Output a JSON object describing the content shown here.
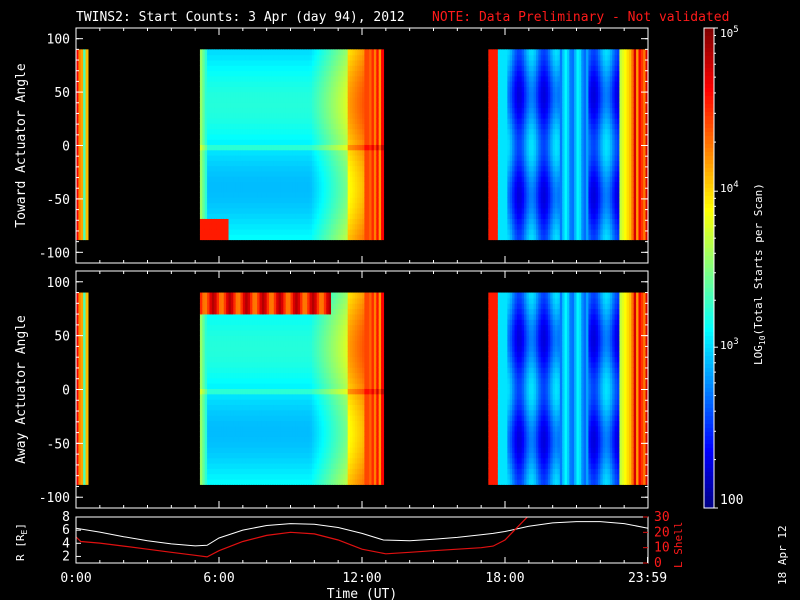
{
  "title": {
    "main": "TWINS2: Start Counts:  3 Apr (day  94), 2012",
    "note": "NOTE: Data Preliminary - Not validated"
  },
  "stamp": "18 Apr 12",
  "colors": {
    "note": "#ff1a1a",
    "ephem_r": "#ffffff",
    "ephem_l": "#e01010"
  },
  "chart_data": [
    {
      "type": "heatmap",
      "ylabel": "Toward Actuator Angle",
      "ylim": [
        -110,
        110
      ],
      "yticks": [
        100,
        50,
        0,
        -50,
        -100
      ],
      "xlim": [
        0,
        24
      ],
      "data_ranges_hours": [
        [
          0,
          0.5
        ],
        [
          5.2,
          12.9
        ],
        [
          17.3,
          24
        ]
      ],
      "angle_range": [
        -88,
        90
      ]
    },
    {
      "type": "heatmap",
      "ylabel": "Away Actuator Angle",
      "ylim": [
        -110,
        110
      ],
      "yticks": [
        100,
        50,
        0,
        -50,
        -100
      ],
      "xlim": [
        0,
        24
      ],
      "data_ranges_hours": [
        [
          0,
          0.5
        ],
        [
          5.2,
          12.9
        ],
        [
          17.3,
          24
        ]
      ],
      "angle_range": [
        -88,
        90
      ]
    },
    {
      "type": "line",
      "ylabel": "R [R",
      "ylabel_sub": "E",
      "ylabel_close": "]",
      "ylim": [
        1,
        8
      ],
      "yticks": [
        2,
        4,
        6,
        8
      ],
      "y2label": "L Shell",
      "y2lim": [
        0,
        30
      ],
      "y2ticks": [
        0,
        10,
        20,
        30
      ],
      "xlabel": "Time (UT)",
      "xticks": [
        {
          "x": 0,
          "label": "0:00"
        },
        {
          "x": 6,
          "label": "6:00"
        },
        {
          "x": 12,
          "label": "12:00"
        },
        {
          "x": 18,
          "label": "18:00"
        },
        {
          "x": 23.98,
          "label": "23:59"
        }
      ],
      "series": [
        {
          "x": [
            0,
            1,
            2,
            3,
            4,
            5,
            5.5,
            6,
            7,
            8,
            9,
            10,
            11,
            12,
            12.9,
            14,
            15,
            16,
            17,
            17.5,
            18,
            19,
            20,
            21,
            22,
            23,
            24
          ],
          "values": [
            6.3,
            5.7,
            5.0,
            4.4,
            3.9,
            3.6,
            3.7,
            4.8,
            6.0,
            6.7,
            7.0,
            6.9,
            6.4,
            5.5,
            4.5,
            4.4,
            4.6,
            4.9,
            5.3,
            5.5,
            5.8,
            6.6,
            7.1,
            7.3,
            7.3,
            7.0,
            6.3
          ]
        }
      ],
      "series_lshell": [
        {
          "x": [
            0,
            0.2,
            1,
            2,
            3,
            4,
            5,
            5.5,
            6,
            7,
            8,
            9,
            10,
            11,
            12,
            13,
            14,
            15,
            16,
            17,
            17.5,
            18,
            18.5,
            19
          ],
          "values": [
            17,
            14,
            13,
            11,
            9,
            7,
            5,
            4,
            8,
            14,
            18,
            20,
            19,
            15,
            9,
            6,
            7,
            8,
            9,
            10,
            11,
            15,
            23,
            31
          ]
        }
      ]
    }
  ],
  "colorbar": {
    "label": "LOG",
    "label_sub": "10",
    "label_tail": "(Total Starts per Scan)",
    "ticks": [
      {
        "base": "10",
        "exp": "5"
      },
      {
        "base": "10",
        "exp": "4"
      },
      {
        "base": "10",
        "exp": "3"
      },
      {
        "base": "100",
        "exp": ""
      }
    ]
  }
}
